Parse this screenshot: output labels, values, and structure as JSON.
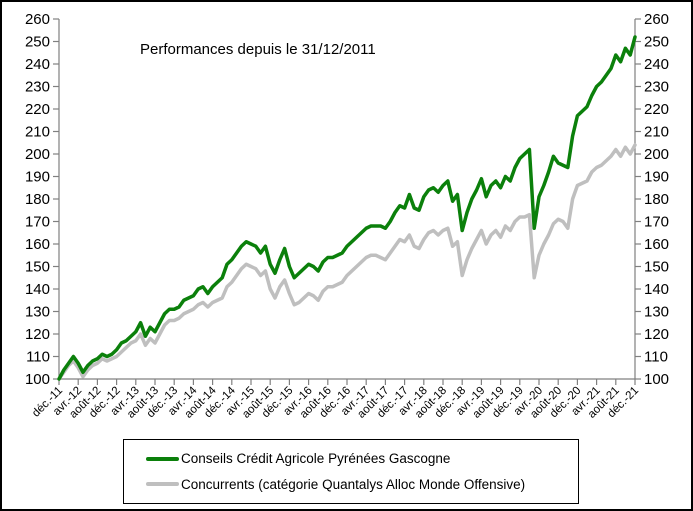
{
  "window": {
    "background": "#ffffff",
    "frame_border_color": "#000000"
  },
  "chart_data": {
    "type": "line",
    "title": "Performances depuis le 31/12/2011",
    "xlabel": "",
    "ylabel": "",
    "ylim": [
      100,
      260
    ],
    "y_ticks": [
      100,
      110,
      120,
      130,
      140,
      150,
      160,
      170,
      180,
      190,
      200,
      210,
      220,
      230,
      240,
      250,
      260
    ],
    "y_axis_sides": "both",
    "grid": false,
    "axis_color": "#808080",
    "text_color": "#000000",
    "legend_position": "bottom",
    "x_months_total": 120,
    "x_tick_labels": [
      "déc.-11",
      "avr.-12",
      "août-12",
      "déc.-12",
      "avr.-13",
      "août-13",
      "déc.-13",
      "avr.-14",
      "août-14",
      "déc.-14",
      "avr.-15",
      "août-15",
      "déc.-15",
      "avr.-16",
      "août-16",
      "déc.-16",
      "avr.-17",
      "août-17",
      "déc.-17",
      "avr.-18",
      "août-18",
      "déc.-18",
      "avr.-19",
      "août-19",
      "déc.-19",
      "avr.-20",
      "août-20",
      "déc.-20",
      "avr.-21",
      "août-21",
      "déc.-21"
    ],
    "series": [
      {
        "name": "Conseils Crédit Agricole Pyrénées Gascogne",
        "color": "#0b800b",
        "line_width": 3.5,
        "values": [
          100,
          104,
          107,
          110,
          107,
          103,
          106,
          108,
          109,
          111,
          110,
          111,
          113,
          116,
          117,
          119,
          121,
          125,
          119,
          123,
          121,
          125,
          129,
          131,
          131,
          132,
          135,
          136,
          137,
          140,
          141,
          138,
          141,
          143,
          145,
          151,
          153,
          156,
          159,
          161,
          160,
          159,
          156,
          159,
          151,
          147,
          153,
          158,
          150,
          145,
          147,
          149,
          151,
          150,
          148,
          152,
          154,
          154,
          155,
          156,
          159,
          161,
          163,
          165,
          167,
          168,
          168,
          168,
          167,
          170,
          174,
          177,
          176,
          182,
          176,
          175,
          181,
          184,
          185,
          183,
          186,
          188,
          179,
          182,
          166,
          174,
          180,
          184,
          189,
          181,
          186,
          188,
          185,
          190,
          188,
          194,
          198,
          200,
          202,
          167,
          181,
          186,
          192,
          199,
          196,
          195,
          194,
          208,
          217,
          219,
          221,
          226,
          230,
          232,
          235,
          238,
          244,
          241,
          247,
          244,
          252
        ]
      },
      {
        "name": "Concurrents (catégorie Quantalys Alloc Monde Offensive)",
        "color": "#bfbfbf",
        "line_width": 3.5,
        "values": [
          100,
          103,
          106,
          108,
          105,
          101,
          104,
          106,
          107,
          109,
          108,
          109,
          110,
          112,
          114,
          116,
          117,
          120,
          115,
          118,
          116,
          120,
          124,
          126,
          126,
          127,
          129,
          130,
          131,
          133,
          134,
          132,
          134,
          135,
          136,
          141,
          143,
          146,
          149,
          151,
          150,
          149,
          146,
          148,
          140,
          136,
          141,
          144,
          138,
          133,
          134,
          136,
          138,
          137,
          135,
          139,
          141,
          141,
          142,
          143,
          146,
          148,
          150,
          152,
          154,
          155,
          155,
          154,
          153,
          156,
          159,
          162,
          161,
          164,
          159,
          158,
          162,
          165,
          166,
          164,
          166,
          167,
          159,
          161,
          146,
          153,
          158,
          162,
          166,
          160,
          164,
          166,
          163,
          168,
          166,
          170,
          172,
          172,
          173,
          145,
          155,
          160,
          164,
          169,
          171,
          170,
          167,
          180,
          186,
          187,
          188,
          192,
          194,
          195,
          197,
          199,
          202,
          199,
          203,
          200,
          204
        ]
      }
    ]
  }
}
